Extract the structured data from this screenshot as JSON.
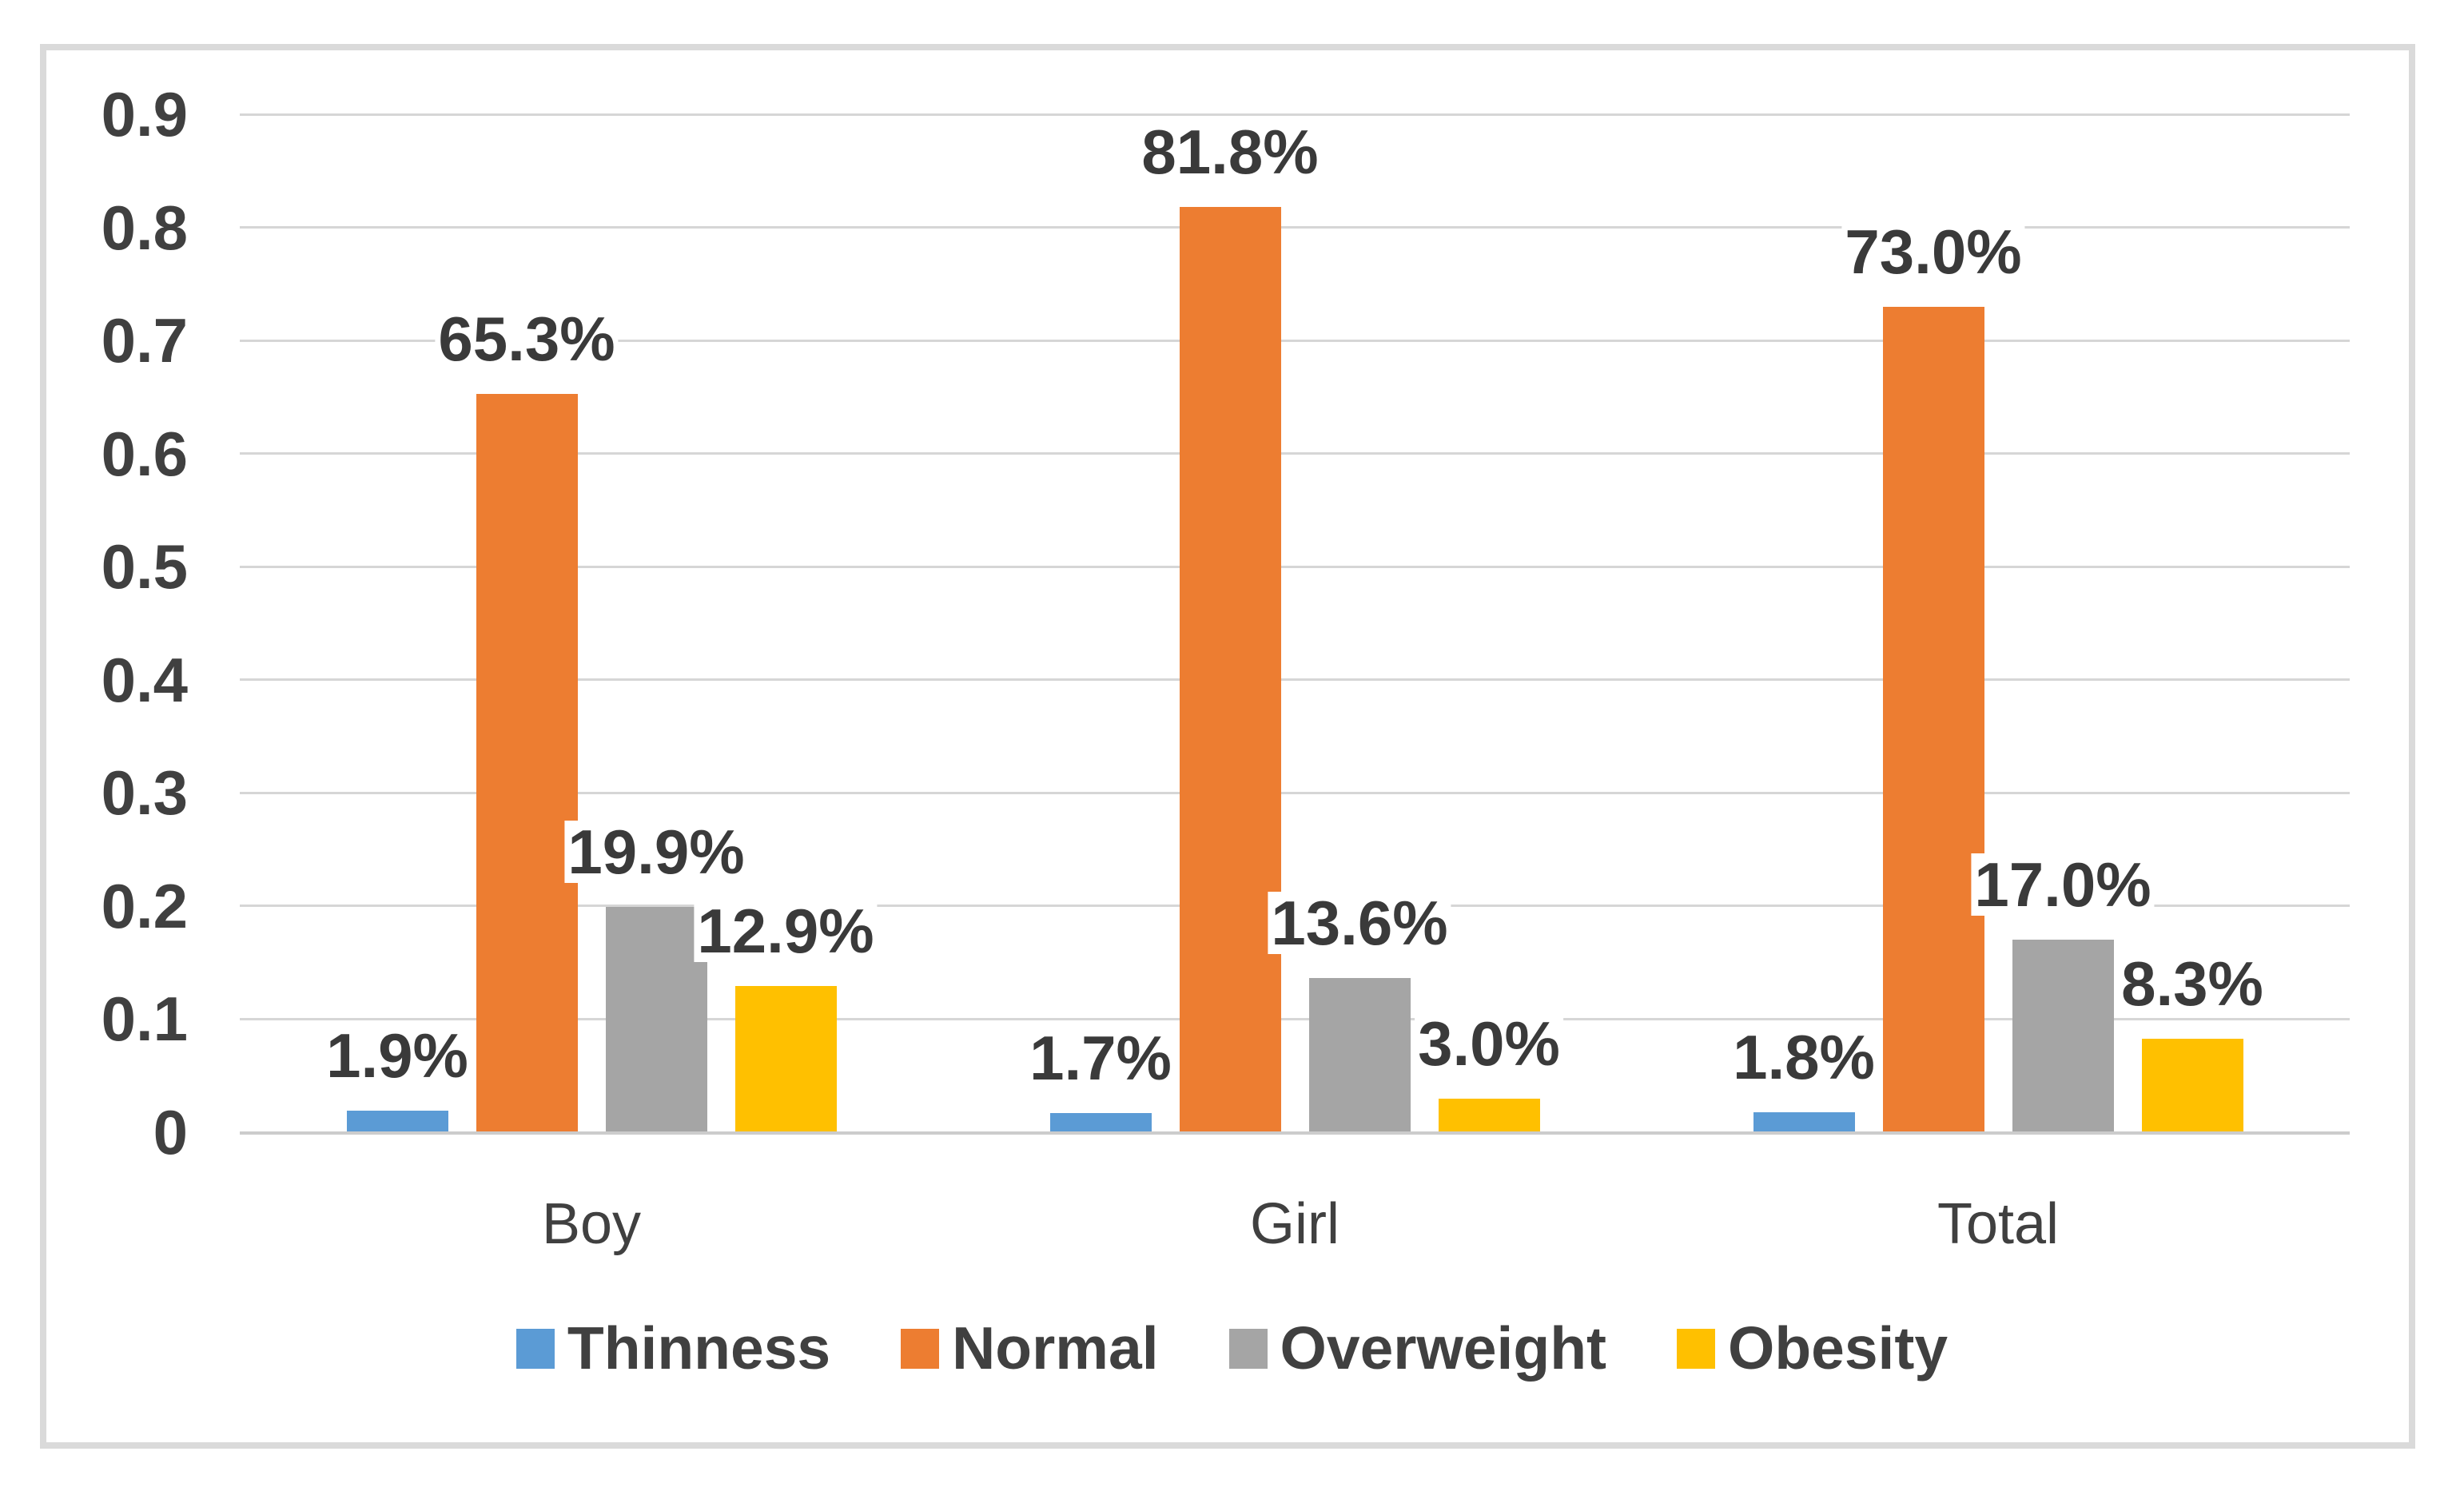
{
  "chart_data": {
    "type": "bar",
    "title": "",
    "categories": [
      "Boy",
      "Girl",
      "Total"
    ],
    "series": [
      {
        "name": "Thinness",
        "color": "#5B9BD5",
        "values": [
          0.019,
          0.017,
          0.018
        ],
        "data_labels": [
          "1.9%",
          "1.7%",
          "1.8%"
        ]
      },
      {
        "name": "Normal",
        "color": "#ED7D31",
        "values": [
          0.653,
          0.818,
          0.73
        ],
        "data_labels": [
          "65.3%",
          "81.8%",
          "73.0%"
        ]
      },
      {
        "name": "Overweight",
        "color": "#A5A5A5",
        "values": [
          0.199,
          0.136,
          0.17
        ],
        "data_labels": [
          "19.9%",
          "13.6%",
          "17.0%"
        ]
      },
      {
        "name": "Obesity",
        "color": "#FFC000",
        "values": [
          0.129,
          0.03,
          0.083
        ],
        "data_labels": [
          "12.9%",
          "3.0%",
          "8.3%"
        ]
      }
    ],
    "y_axis": {
      "min": 0,
      "max": 0.9,
      "step": 0.1,
      "tick_labels": [
        "0",
        "0.1",
        "0.2",
        "0.3",
        "0.4",
        "0.5",
        "0.6",
        "0.7",
        "0.8",
        "0.9"
      ]
    },
    "grid": true,
    "legend_position": "bottom",
    "colors": {
      "gridline": "#D6D6D6",
      "axis_line": "#CCCCCC",
      "frame_border": "#DADADA",
      "text": "#404040",
      "background": "#FFFFFF"
    }
  }
}
